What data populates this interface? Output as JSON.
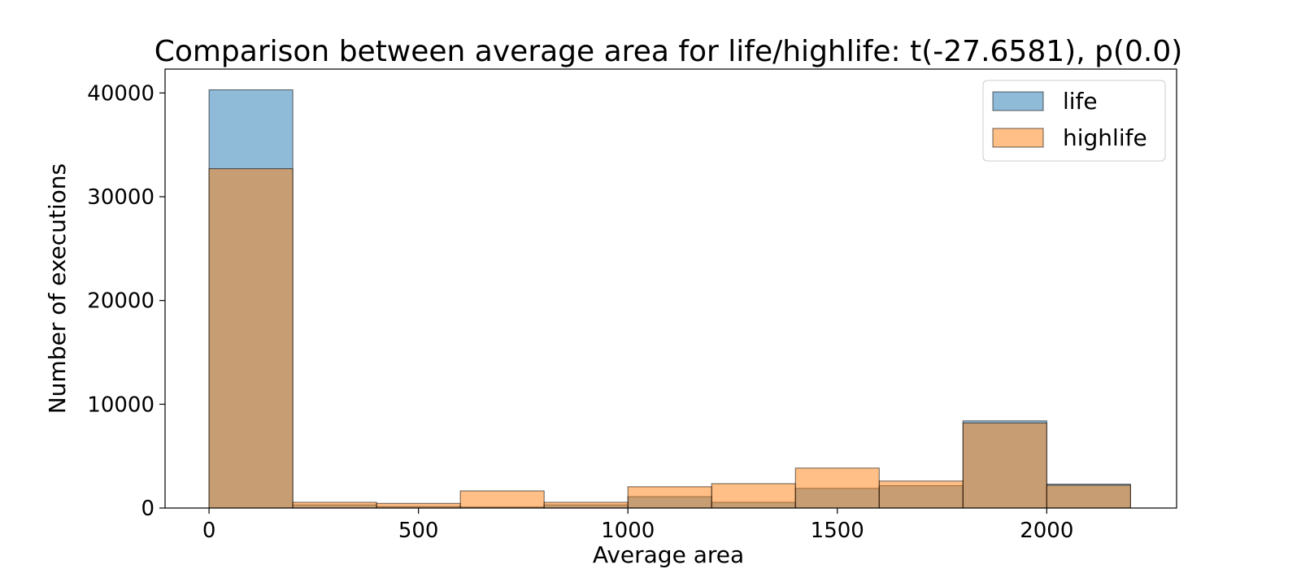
{
  "chart_data": {
    "type": "bar",
    "title": "Comparison between average area for life/highlife: t(-27.6581), p(0.0)",
    "xlabel": "Average area",
    "ylabel": "Number of executions",
    "xlim": [
      -105,
      2310
    ],
    "ylim": [
      0,
      42300
    ],
    "xticks": [
      0,
      500,
      1000,
      1500,
      2000
    ],
    "yticks": [
      0,
      10000,
      20000,
      30000,
      40000
    ],
    "bin_edges": [
      0,
      200,
      400,
      600,
      800,
      1000,
      1200,
      1400,
      1600,
      1800,
      2000,
      2200
    ],
    "grid": false,
    "legend_position": "top-right",
    "series": [
      {
        "name": "life",
        "color": "#1f77b4",
        "values": [
          40300,
          300,
          150,
          100,
          300,
          1100,
          550,
          1900,
          2150,
          8400,
          2300
        ]
      },
      {
        "name": "highlife",
        "color": "#ff7f0e",
        "values": [
          32700,
          550,
          450,
          1650,
          550,
          2050,
          2350,
          3850,
          2600,
          8200,
          2200
        ]
      }
    ]
  }
}
